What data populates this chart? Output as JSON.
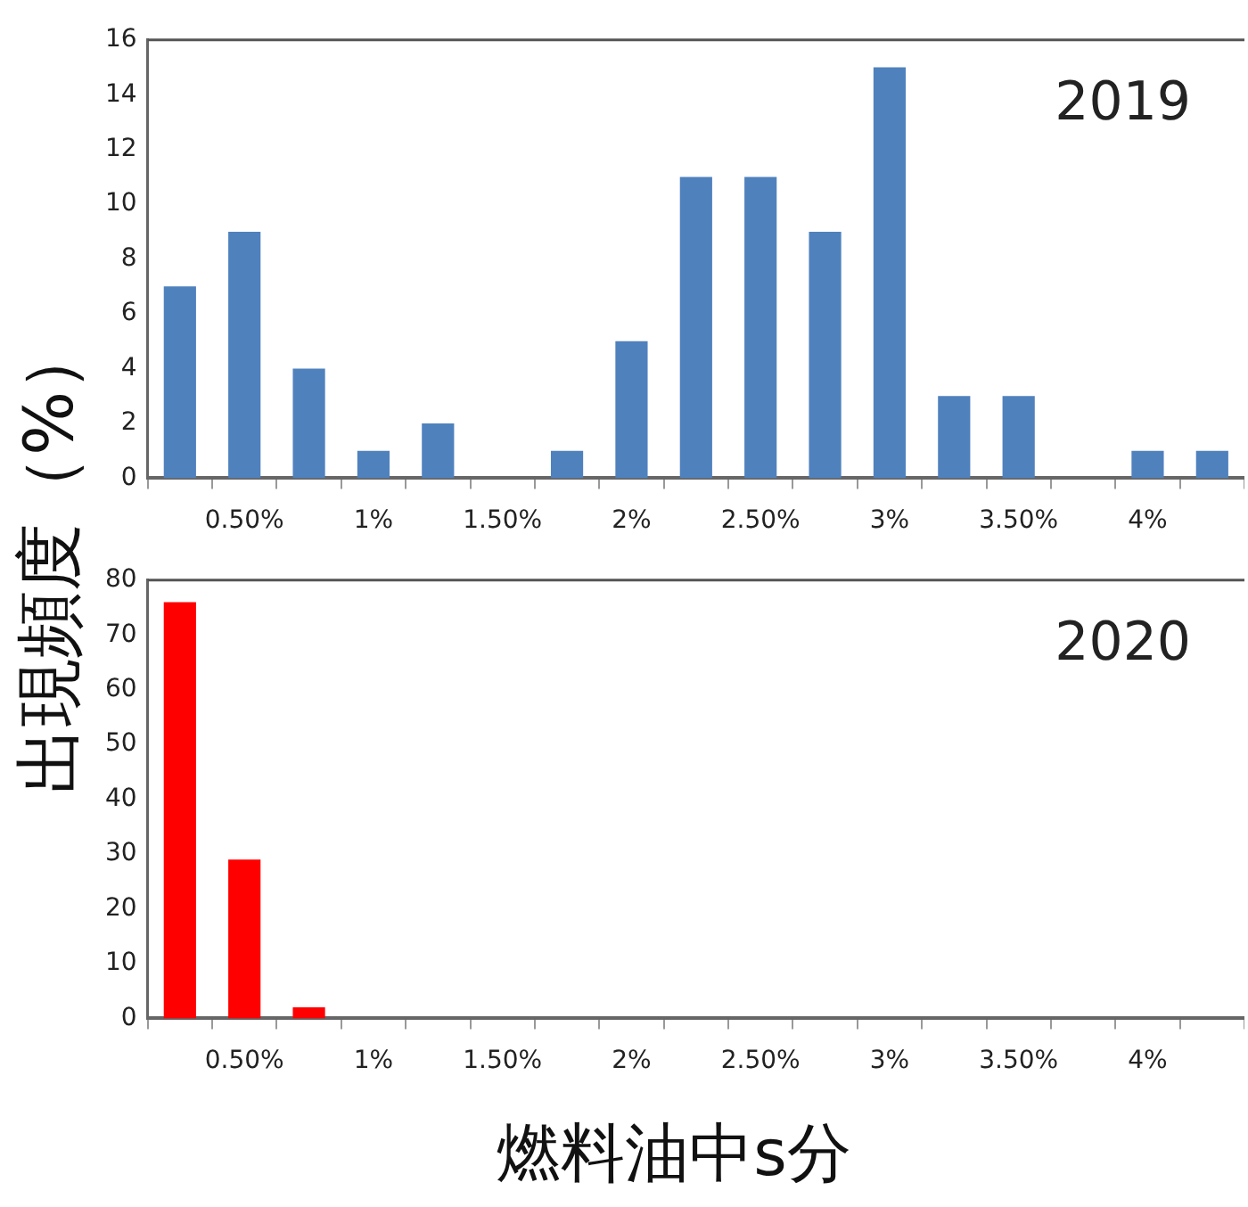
{
  "chart_data": [
    {
      "type": "bar",
      "ylabel": "出現頻度（%）",
      "annotations": [
        "2019"
      ],
      "categories": [
        null,
        "0.50%",
        null,
        "1%",
        null,
        "1.50%",
        null,
        "2%",
        null,
        "2.50%",
        null,
        "3%",
        null,
        "3.50%",
        null,
        "4%",
        null
      ],
      "values": [
        7,
        9,
        4,
        1,
        2,
        0,
        1,
        5,
        11,
        11,
        9,
        15,
        3,
        3,
        0,
        1,
        1
      ],
      "color": "#4f81bd",
      "ylim": [
        0,
        16
      ],
      "yticks": [
        0,
        2,
        4,
        6,
        8,
        10,
        12,
        14,
        16
      ],
      "grid": false,
      "legend": false
    },
    {
      "type": "bar",
      "xlabel": "燃料油中s分",
      "annotations": [
        "2020"
      ],
      "categories": [
        null,
        "0.50%",
        null,
        "1%",
        null,
        "1.50%",
        null,
        "2%",
        null,
        "2.50%",
        null,
        "3%",
        null,
        "3.50%",
        null,
        "4%",
        null
      ],
      "values": [
        76,
        29,
        2,
        0,
        0,
        0,
        0,
        0,
        0,
        0,
        0,
        0,
        0,
        0,
        0,
        0,
        0
      ],
      "color": "#ff0000",
      "ylim": [
        0,
        80
      ],
      "yticks": [
        0,
        10,
        20,
        30,
        40,
        50,
        60,
        70,
        80
      ],
      "grid": false,
      "legend": false
    }
  ]
}
